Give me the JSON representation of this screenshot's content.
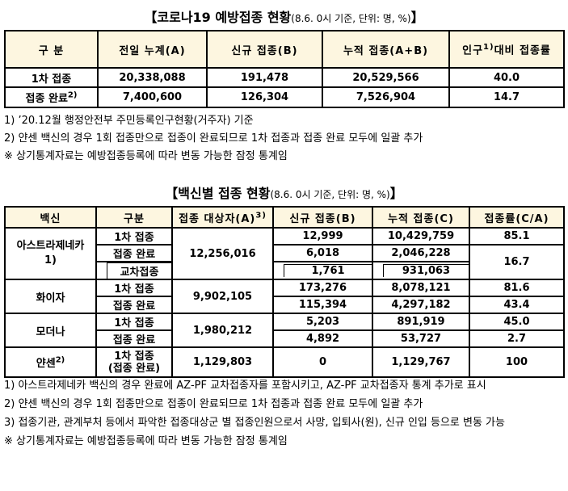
{
  "table1": {
    "title": "【코로나19 예방접종 현황",
    "title_note": "(8.6. 0시 기준, 단위: 명, %)",
    "title_close": "】",
    "header": [
      "구 분",
      "전일 누계(A)",
      "신규 접종(B)",
      "누적 접종(A+B)"
    ],
    "header_last": {
      "text": "인구",
      "sup": "1)",
      "text2": "대비 접종률"
    },
    "rows": [
      {
        "label": "1차 접종",
        "values": [
          "20,338,088",
          "191,478",
          "20,529,566",
          "40.0"
        ]
      },
      {
        "label": "접종 완료",
        "sup": "2)",
        "values": [
          "7,400,600",
          "126,304",
          "7,526,904",
          "14.7"
        ]
      }
    ]
  },
  "notes1": [
    "1) ’20.12월 행정안전부 주민등록인구현황(거주자) 기준",
    "2) 얀센 백신의 경우 1회 접종만으로 접종이 완료되므로 1차 접종과 접종 완료 모두에 일괄 추가",
    "※ 상기통계자료는 예방접종등록에 따라 변동 가능한 잠정 통계임"
  ],
  "table2": {
    "title": "【백신별 접종 현황",
    "title_note": "(8.6. 0시 기준, 단위: 명, %)",
    "title_close": "】",
    "header": [
      "백신",
      "구분",
      "접종 대상자(A)",
      "신규 접종(B)",
      "누적 접종(C)",
      "접종률(C/A)"
    ],
    "header_sup": "3)",
    "vaccines": [
      {
        "name": "아스트라제네카",
        "note": "1)",
        "target": "12,256,016",
        "rows": [
          {
            "kind": "1차 접종",
            "new": "12,999",
            "cum": "10,429,759",
            "rate": "85.1"
          },
          {
            "kind": "접종 완료",
            "new": "6,018",
            "cum": "2,046,228",
            "rate": "16.7"
          },
          {
            "kind": "교차접종",
            "new": "1,761",
            "cum": "931,063"
          }
        ]
      },
      {
        "name": "화이자",
        "target": "9,902,105",
        "rows": [
          {
            "kind": "1차 접종",
            "new": "173,276",
            "cum": "8,078,121",
            "rate": "81.6"
          },
          {
            "kind": "접종 완료",
            "new": "115,394",
            "cum": "4,297,182",
            "rate": "43.4"
          }
        ]
      },
      {
        "name": "모더나",
        "target": "1,980,212",
        "rows": [
          {
            "kind": "1차 접종",
            "new": "5,203",
            "cum": "891,919",
            "rate": "45.0"
          },
          {
            "kind": "접종 완료",
            "new": "4,892",
            "cum": "53,727",
            "rate": "2.7"
          }
        ]
      },
      {
        "name": "얀센",
        "sup": "2)",
        "target": "1,129,803",
        "rows": [
          {
            "kind": "1차 접종",
            "kind2": "(접종 완료)",
            "new": "0",
            "cum": "1,129,767",
            "rate": "100"
          }
        ]
      }
    ]
  },
  "notes2": [
    "1) 아스트라제네카 백신의 경우 완료에 AZ-PF 교차접종자를 포함시키고, AZ-PF 교차접종자 통계 추가로 표시",
    "2) 얀센 백신의 경우 1회 접종만으로 접종이 완료되므로 1차 접종과 접종 완료 모두에 일괄 추가",
    "3) 접종기관, 관계부처 등에서 파악한 접종대상군 별 접종인원으로서 사망, 입퇴사(원), 신규 인입 등으로 변동 가능",
    "※ 상기통계자료는 예방접종등록에 따라 변동 가능한 잠정 통계임"
  ]
}
